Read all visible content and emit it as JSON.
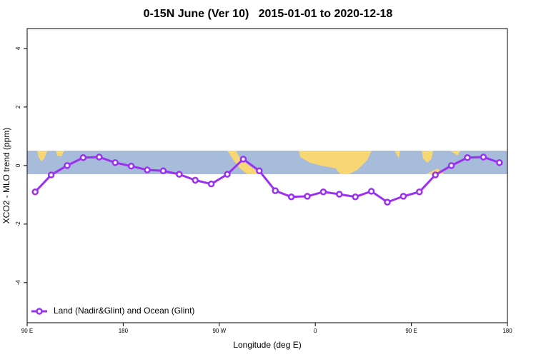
{
  "chart_data": {
    "type": "line",
    "title": "0-15N June (Ver 10)   2015-01-01 to 2020-12-18",
    "x_label": "Longitude (deg E)",
    "y_label": "XCO2 - MLO trend (ppm)",
    "xlim": [
      90,
      540
    ],
    "xticks": [
      {
        "value": 90,
        "label": "90 E"
      },
      180,
      {
        "value": 270,
        "label": "90 W"
      },
      {
        "value": 360,
        "label": "0"
      },
      {
        "value": 450,
        "label": "90 E"
      },
      {
        "value": 540,
        "label": "180"
      }
    ],
    "ylim": [
      -5.37,
      4.68
    ],
    "yticks": [
      -4,
      -2,
      0,
      2,
      4
    ],
    "legend": "bottom-left",
    "x": [
      97.5,
      112.5,
      127.5,
      142.5,
      157.5,
      172.5,
      187.5,
      202.5,
      217.5,
      232.5,
      247.5,
      262.5,
      277.5,
      292.5,
      307.5,
      322.5,
      337.5,
      352.5,
      367.5,
      382.5,
      397.5,
      412.5,
      427.5,
      442.5,
      457.5,
      472.5,
      487.5,
      502.5,
      517.5,
      532.5
    ],
    "series": [
      {
        "name": "Land (Nadir&Glint) and Ocean (Glint)",
        "color": "#9b30f0",
        "values": [
          -0.9,
          -0.32,
          0.0,
          0.27,
          0.29,
          0.1,
          -0.02,
          -0.15,
          -0.18,
          -0.3,
          -0.5,
          -0.63,
          -0.3,
          0.22,
          -0.18,
          -0.86,
          -1.07,
          -1.05,
          -0.9,
          -0.98,
          -1.07,
          -0.88,
          -1.25,
          -1.05,
          -0.9,
          -0.32,
          0.0,
          0.27,
          0.29,
          0.1
        ]
      }
    ]
  }
}
